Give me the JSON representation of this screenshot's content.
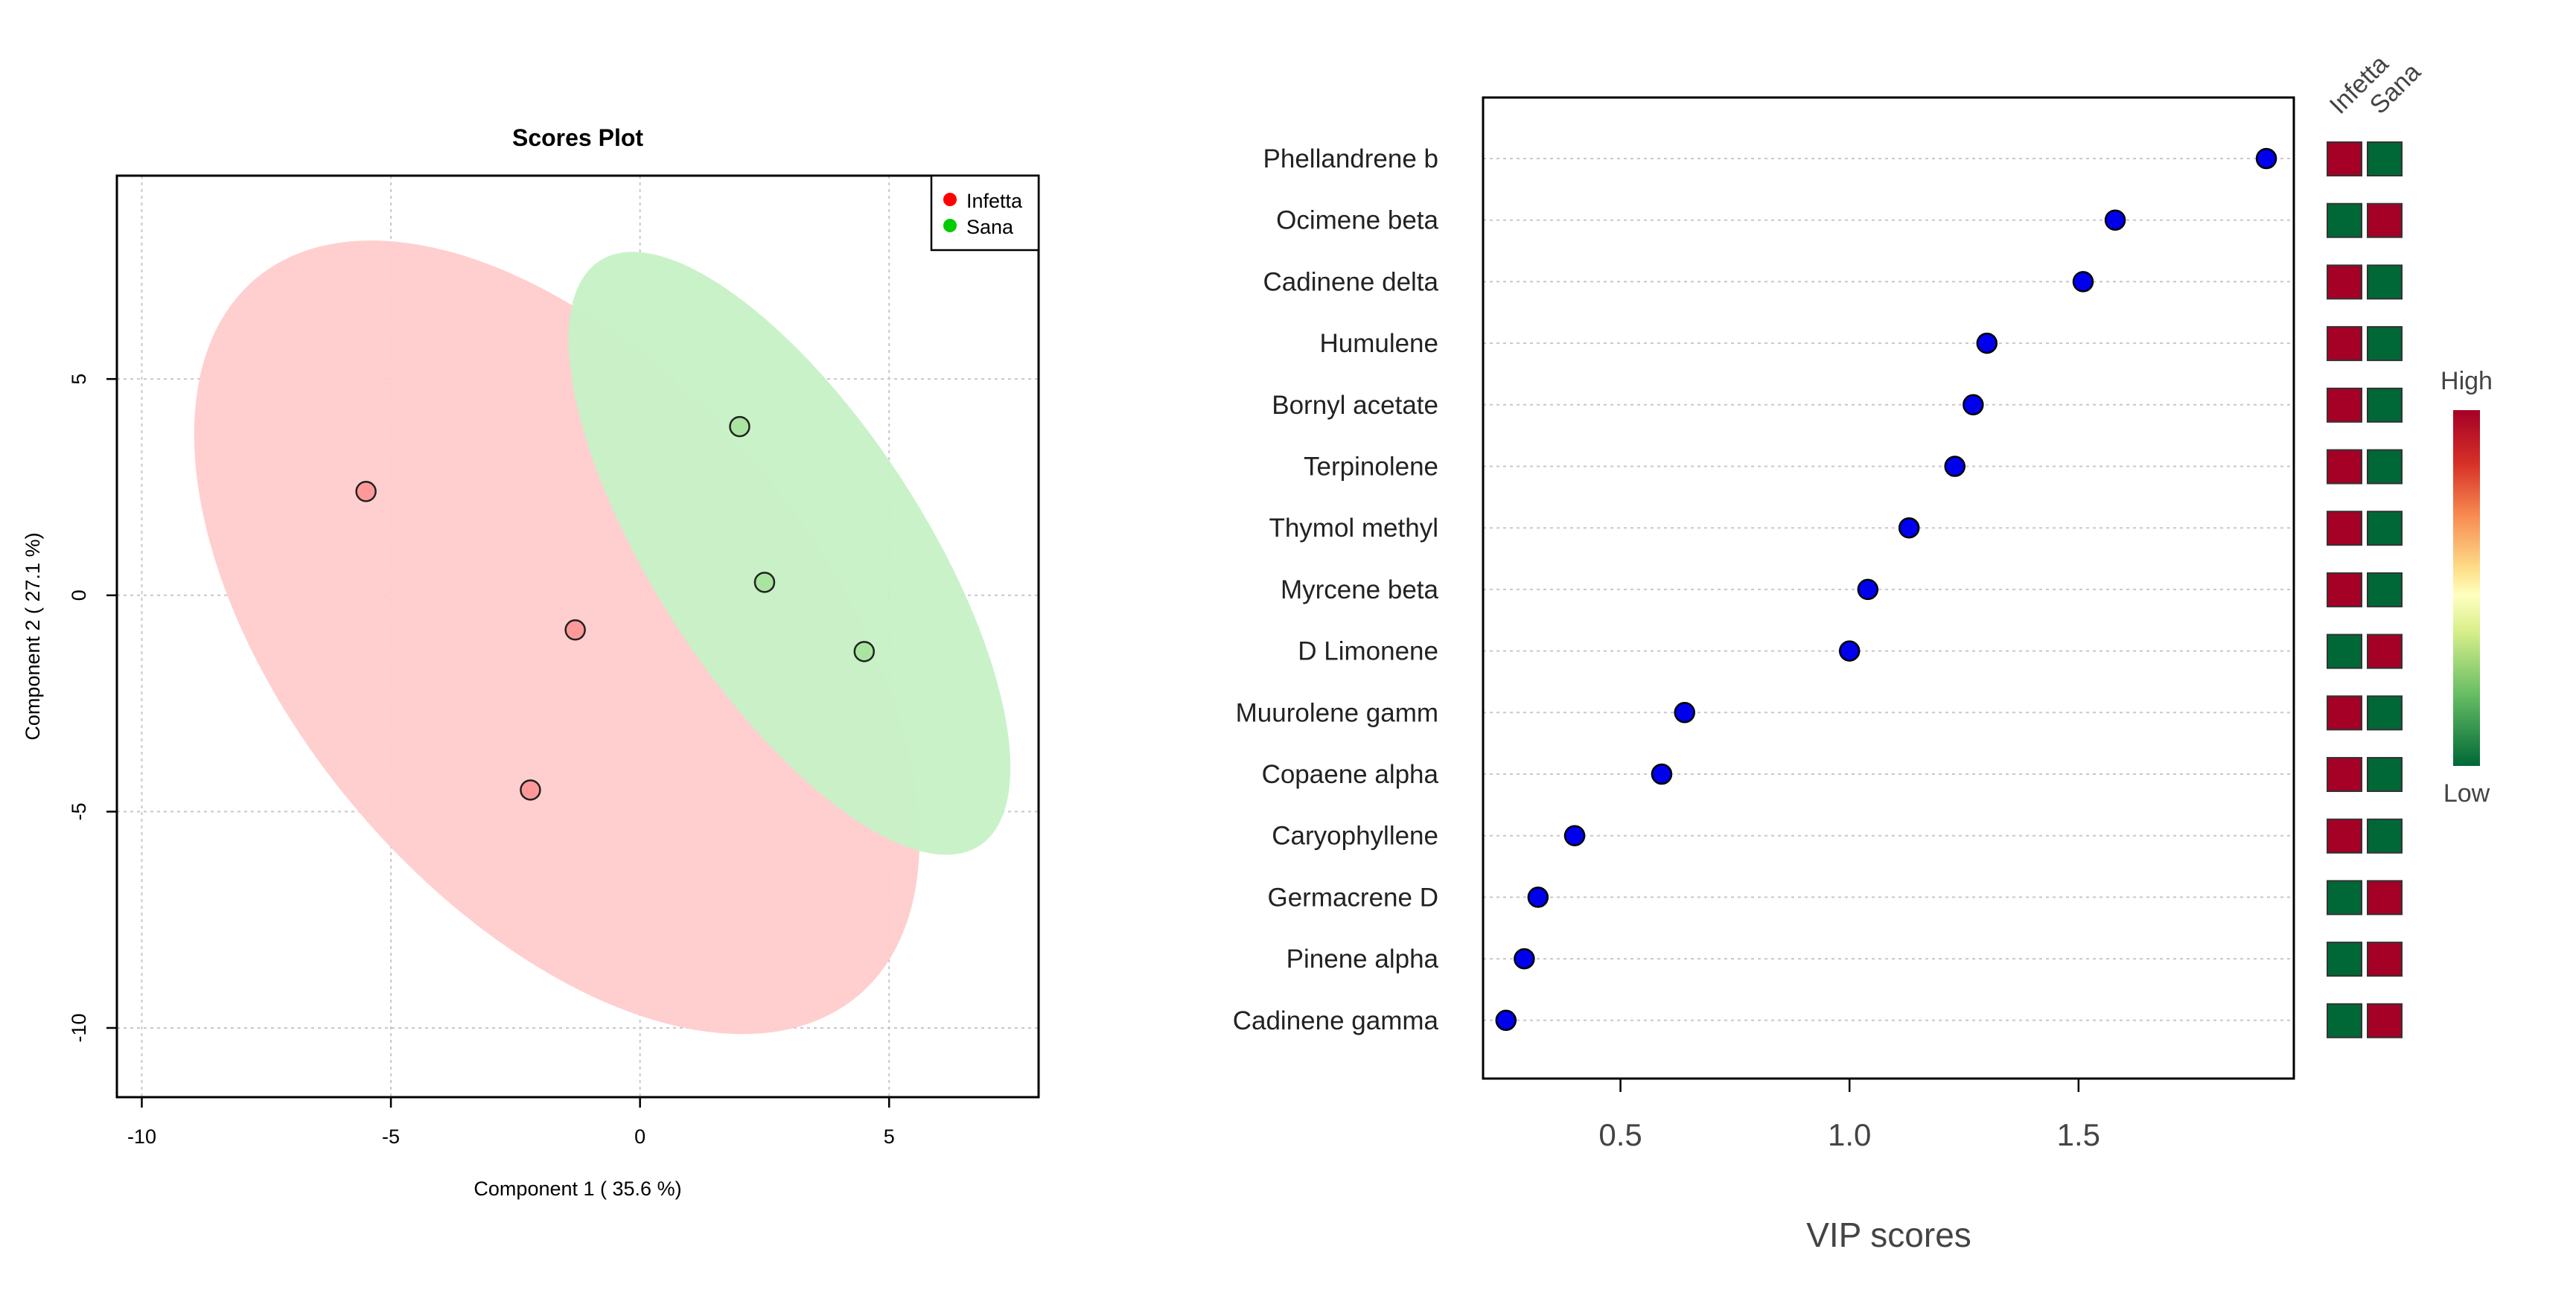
{
  "colors": {
    "infetta_fill": "#ff9999",
    "sana_fill": "#a9e5a1",
    "infetta_ellipse": "#ffcccc",
    "sana_ellipse": "#c6f1c6",
    "infetta_legend": "#ff0000",
    "sana_legend": "#00cc00",
    "vip_point": "#0000ee",
    "heat_high": "#a50026",
    "heat_low": "#006837",
    "grid": "#c8c8c8"
  },
  "chart_data": [
    {
      "type": "scatter",
      "title": "Scores Plot",
      "xlabel": "Component 1 ( 35.6 %)",
      "ylabel": "Component 2 ( 27.1 %)",
      "xlim": [
        -10.5,
        8
      ],
      "ylim": [
        -11.6,
        9.7
      ],
      "xticks": [
        -10,
        -5,
        0,
        5
      ],
      "xtick_labels": [
        "-10",
        "-5",
        "0",
        "5"
      ],
      "yticks": [
        -10,
        -5,
        0,
        5
      ],
      "ytick_labels": [
        "-10",
        "-5",
        "0",
        "5"
      ],
      "legend": [
        {
          "name": "Infetta",
          "color": "#ff0000"
        },
        {
          "name": "Sana",
          "color": "#00cc00"
        }
      ],
      "legend_position": "top-right",
      "series": [
        {
          "name": "Infetta",
          "points": [
            [
              -5.5,
              2.4
            ],
            [
              -1.3,
              -0.8
            ],
            [
              -2.2,
              -4.5
            ]
          ]
        },
        {
          "name": "Sana",
          "points": [
            [
              2.0,
              3.9
            ],
            [
              2.5,
              0.3
            ],
            [
              4.5,
              -1.3
            ]
          ]
        }
      ],
      "ellipses": [
        {
          "group": "Infetta",
          "center": [
            -1.67,
            -0.97
          ],
          "semi_major": 9.4,
          "semi_minor": 5.3,
          "angle_deg": -50
        },
        {
          "group": "Sana",
          "center": [
            3.0,
            0.97
          ],
          "semi_major": 7.0,
          "semi_minor": 2.7,
          "angle_deg": -57
        }
      ]
    },
    {
      "type": "dot",
      "title": "",
      "xlabel": "VIP scores",
      "xlim": [
        0.2,
        1.97
      ],
      "xticks": [
        0.5,
        1.0,
        1.5
      ],
      "xtick_labels": [
        "0.5",
        "1.0",
        "1.5"
      ],
      "categories": [
        "Phellandrene b",
        "Ocimene beta",
        "Cadinene delta",
        "Humulene",
        "Bornyl acetate",
        "Terpinolene",
        "Thymol methyl",
        "Myrcene beta",
        "D Limonene",
        "Muurolene gamm",
        "Copaene alpha",
        "Caryophyllene",
        "Germacrene D",
        "Pinene alpha",
        "Cadinene gamma"
      ],
      "values": [
        1.91,
        1.58,
        1.51,
        1.3,
        1.27,
        1.23,
        1.13,
        1.04,
        1.0,
        0.64,
        0.59,
        0.4,
        0.32,
        0.29,
        0.25
      ],
      "heatmap": {
        "columns": [
          "Infetta",
          "Sana"
        ],
        "cells": [
          [
            "high",
            "low"
          ],
          [
            "low",
            "high"
          ],
          [
            "high",
            "low"
          ],
          [
            "high",
            "low"
          ],
          [
            "high",
            "low"
          ],
          [
            "high",
            "low"
          ],
          [
            "high",
            "low"
          ],
          [
            "high",
            "low"
          ],
          [
            "low",
            "high"
          ],
          [
            "high",
            "low"
          ],
          [
            "high",
            "low"
          ],
          [
            "high",
            "low"
          ],
          [
            "low",
            "high"
          ],
          [
            "low",
            "high"
          ],
          [
            "low",
            "high"
          ]
        ]
      },
      "colorbar": {
        "high_label": "High",
        "low_label": "Low"
      }
    }
  ]
}
